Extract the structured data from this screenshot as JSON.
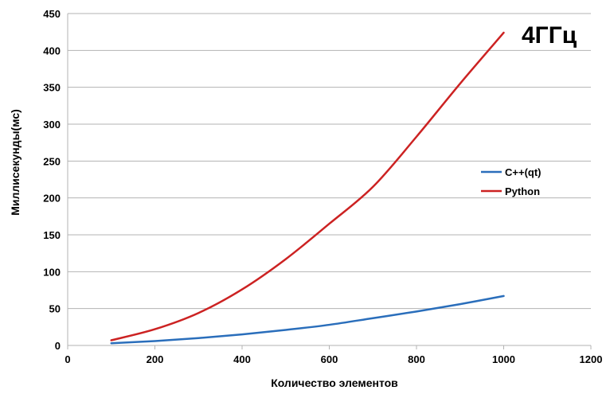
{
  "chart_data": {
    "type": "line",
    "xlabel": "Количество элементов",
    "ylabel": "Миллисекунды(мс)",
    "annotation": "4ГГц",
    "xlim": [
      0,
      1200
    ],
    "ylim": [
      0,
      450
    ],
    "x_ticks": [
      "0",
      "200",
      "400",
      "600",
      "800",
      "1000",
      "1200"
    ],
    "y_ticks": [
      "0",
      "50",
      "100",
      "150",
      "200",
      "250",
      "300",
      "350",
      "400",
      "450"
    ],
    "grid": "horizontal",
    "legend_position": "right",
    "series": [
      {
        "name": "C++(qt)",
        "color": "#2a6ebb",
        "x": [
          100,
          200,
          300,
          400,
          500,
          600,
          700,
          800,
          900,
          1000
        ],
        "y": [
          3,
          6,
          10,
          15,
          21,
          28,
          37,
          46,
          56,
          67
        ]
      },
      {
        "name": "Python",
        "color": "#cc2222",
        "x": [
          100,
          200,
          300,
          400,
          500,
          600,
          700,
          800,
          900,
          1000
        ],
        "y": [
          7,
          22,
          44,
          76,
          117,
          165,
          215,
          283,
          355,
          424
        ]
      }
    ]
  }
}
